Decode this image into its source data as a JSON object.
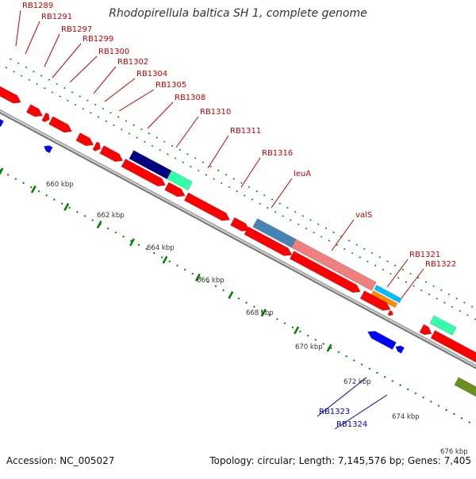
{
  "title": "Rhodopirellula baltica SH 1, complete genome",
  "footer": {
    "accession": "Accession: NC_005027",
    "summary": "Topology: circular; Length: 7,145,576 bp; Genes: 7,405"
  },
  "colors": {
    "gene_forward": "#ff0000",
    "gene_reverse": "#0000ff",
    "label_forward": "#cc0000",
    "label_reverse": "#0000cc",
    "backbone": "#999999",
    "tick_dot": "#008000",
    "kbp_label": "#333333"
  },
  "kbp_ticks": [
    "660 kbp",
    "662 kbp",
    "664 kbp",
    "666 kbp",
    "668 kbp",
    "670 kbp",
    "672 kbp",
    "674 kbp",
    "676 kbp"
  ],
  "gene_labels": [
    {
      "text": "RB1289",
      "strand": "forward"
    },
    {
      "text": "RB1291",
      "strand": "forward"
    },
    {
      "text": "RB1297",
      "strand": "forward"
    },
    {
      "text": "RB1299",
      "strand": "forward"
    },
    {
      "text": "RB1300",
      "strand": "forward"
    },
    {
      "text": "RB1302",
      "strand": "forward"
    },
    {
      "text": "RB1304",
      "strand": "forward"
    },
    {
      "text": "RB1305",
      "strand": "forward"
    },
    {
      "text": "RB1308",
      "strand": "forward"
    },
    {
      "text": "RB1310",
      "strand": "forward"
    },
    {
      "text": "RB1311",
      "strand": "forward"
    },
    {
      "text": "RB1316",
      "strand": "forward"
    },
    {
      "text": "leuA",
      "strand": "forward"
    },
    {
      "text": "valS",
      "strand": "forward"
    },
    {
      "text": "RB1321",
      "strand": "forward"
    },
    {
      "text": "RB1322",
      "strand": "forward"
    },
    {
      "text": "RB1323",
      "strand": "reverse"
    },
    {
      "text": "RB1324",
      "strand": "reverse"
    }
  ]
}
